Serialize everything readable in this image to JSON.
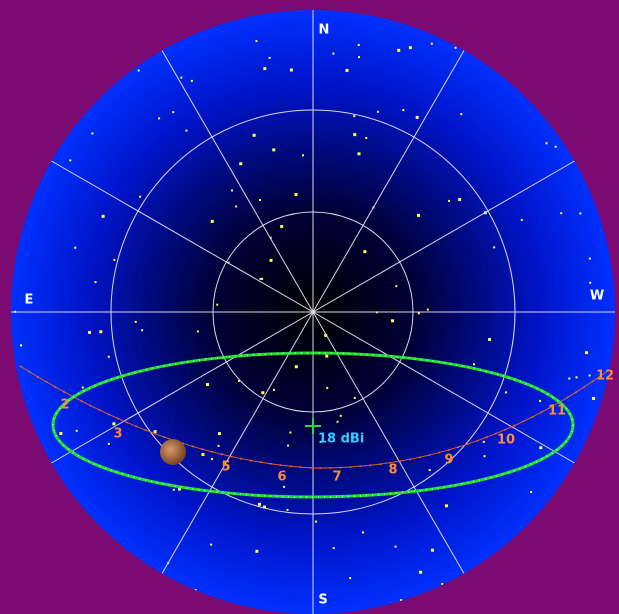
{
  "compass": {
    "north": "N",
    "east": "E",
    "west": "W",
    "south": "S"
  },
  "track": {
    "hour_labels": [
      "2",
      "3",
      "5",
      "6",
      "7",
      "8",
      "9",
      "10",
      "11",
      "12"
    ]
  },
  "beam": {
    "gain_label": "18 dBi"
  }
}
